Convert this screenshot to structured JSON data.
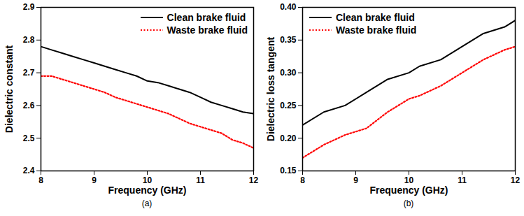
{
  "chart_data": [
    {
      "type": "line",
      "xlabel": "Frequency (GHz)",
      "ylabel": "Dielectric constant",
      "caption": "(a)",
      "x": [
        8,
        8.2,
        8.4,
        8.6,
        8.8,
        9,
        9.2,
        9.4,
        9.6,
        9.8,
        10,
        10.2,
        10.4,
        10.6,
        10.8,
        11,
        11.2,
        11.4,
        11.6,
        11.8,
        12
      ],
      "series": [
        {
          "name": "Clean brake fluid",
          "color": "#000000",
          "line_style": "solid",
          "values": [
            2.78,
            2.77,
            2.76,
            2.75,
            2.74,
            2.73,
            2.72,
            2.71,
            2.7,
            2.69,
            2.675,
            2.67,
            2.66,
            2.65,
            2.64,
            2.625,
            2.61,
            2.6,
            2.59,
            2.58,
            2.575
          ]
        },
        {
          "name": "Waste brake fluid",
          "color": "#ff0000",
          "line_style": "dotted",
          "values": [
            2.69,
            2.69,
            2.68,
            2.67,
            2.66,
            2.65,
            2.64,
            2.625,
            2.615,
            2.605,
            2.595,
            2.585,
            2.575,
            2.56,
            2.545,
            2.535,
            2.525,
            2.515,
            2.495,
            2.485,
            2.47
          ]
        }
      ],
      "xlim": [
        8,
        12
      ],
      "xticks": [
        8,
        9,
        10,
        11,
        12
      ],
      "ylim": [
        2.4,
        2.9
      ],
      "yticks": [
        2.4,
        2.5,
        2.6,
        2.7,
        2.8,
        2.9
      ],
      "legend": "upper right"
    },
    {
      "type": "line",
      "xlabel": "Frequency (GHz)",
      "ylabel": "Dielectric loss tangent",
      "caption": "(b)",
      "x": [
        8,
        8.4,
        8.8,
        9.2,
        9.6,
        10,
        10.2,
        10.6,
        11,
        11.4,
        11.8,
        12
      ],
      "series": [
        {
          "name": "Clean brake fluid",
          "color": "#000000",
          "line_style": "solid",
          "values": [
            0.22,
            0.24,
            0.25,
            0.27,
            0.29,
            0.3,
            0.31,
            0.32,
            0.34,
            0.36,
            0.37,
            0.38
          ]
        },
        {
          "name": "Waste brake fluid",
          "color": "#ff0000",
          "line_style": "dotted",
          "values": [
            0.17,
            0.19,
            0.205,
            0.215,
            0.24,
            0.26,
            0.265,
            0.28,
            0.3,
            0.32,
            0.335,
            0.34
          ]
        }
      ],
      "xlim": [
        8,
        12
      ],
      "xticks": [
        8,
        9,
        10,
        11,
        12
      ],
      "ylim": [
        0.15,
        0.4
      ],
      "yticks": [
        0.15,
        {
          "value": 0.2,
          "label": "0.20"
        },
        0.25,
        {
          "value": 0.3,
          "label": "0.30"
        },
        0.35,
        {
          "value": 0.4,
          "label": "0.40"
        }
      ],
      "legend": "upper left"
    }
  ]
}
